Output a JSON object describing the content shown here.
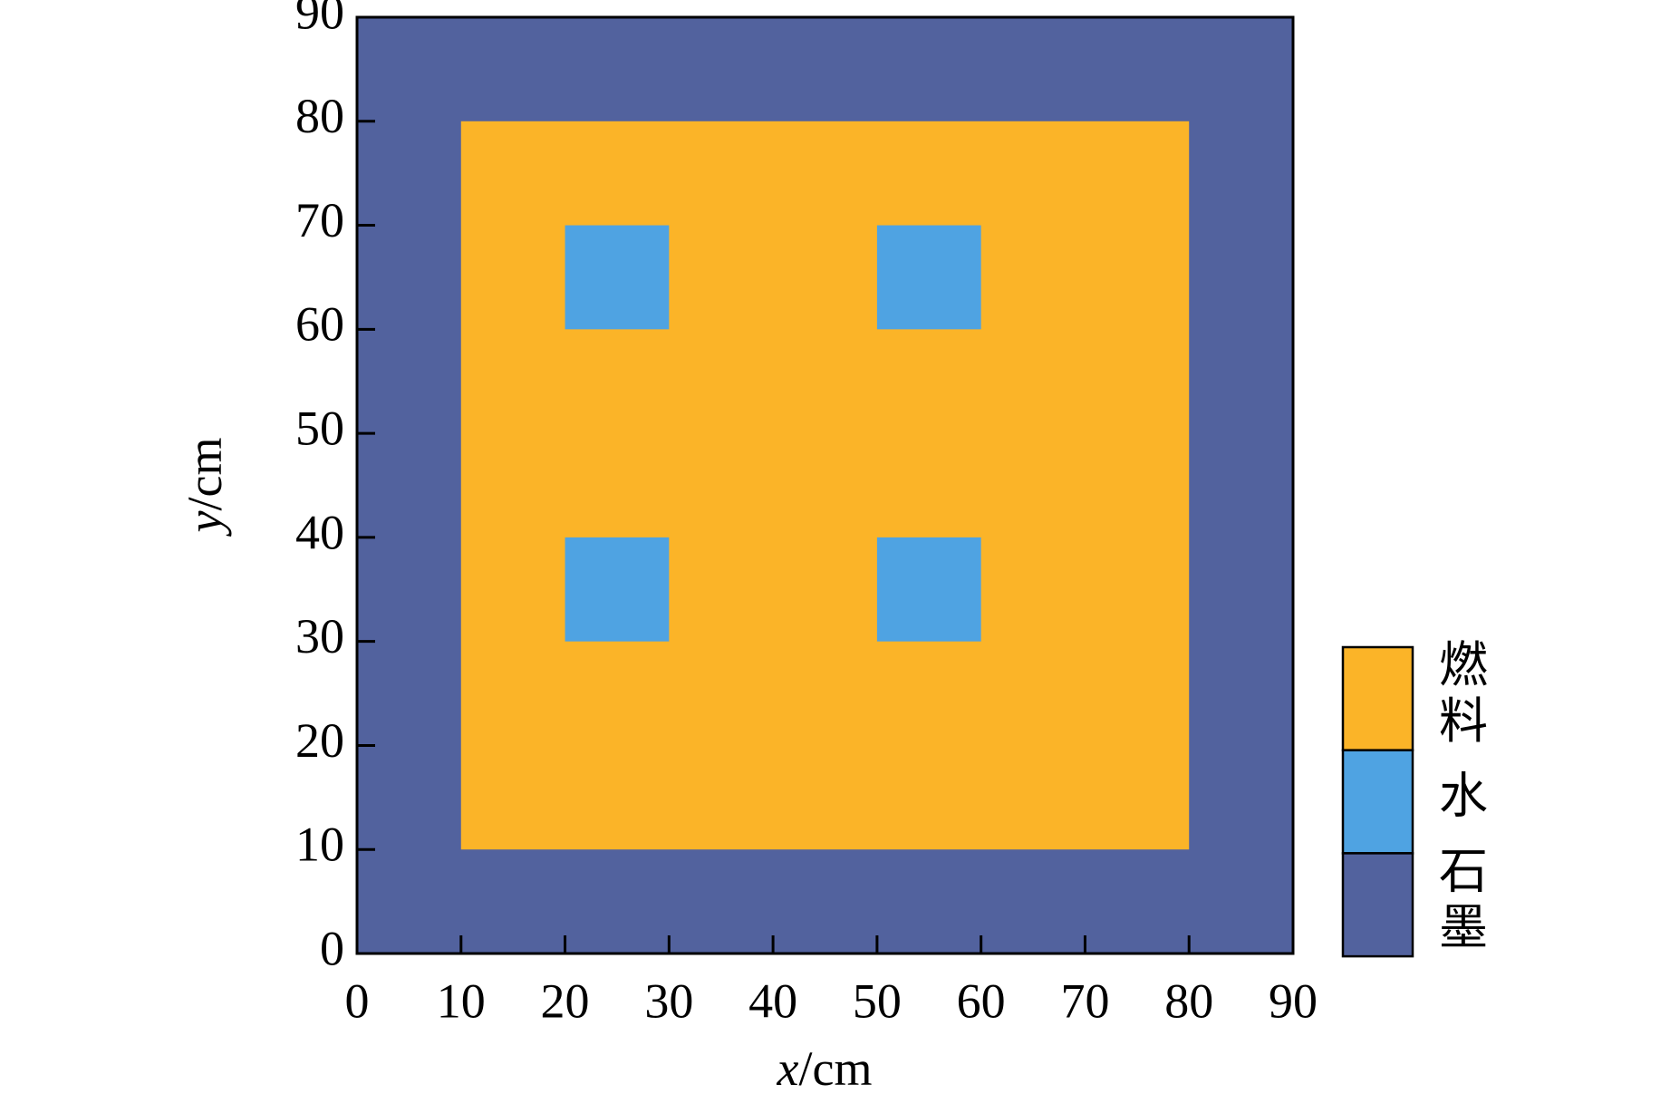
{
  "chart_data": {
    "type": "region",
    "xlabel": "x/cm",
    "ylabel": "y/cm",
    "xlim": [
      0,
      90
    ],
    "ylim": [
      0,
      90
    ],
    "xticks": [
      0,
      10,
      20,
      30,
      40,
      50,
      60,
      70,
      80,
      90
    ],
    "yticks": [
      0,
      10,
      20,
      30,
      40,
      50,
      60,
      70,
      80,
      90
    ],
    "series": [
      {
        "name": "燃料",
        "color": "#fbb428",
        "rects": [
          {
            "x": [
              10,
              80
            ],
            "y": [
              10,
              80
            ]
          }
        ]
      },
      {
        "name": "水",
        "color": "#4fa3e2",
        "rects": [
          {
            "x": [
              20,
              30
            ],
            "y": [
              60,
              70
            ]
          },
          {
            "x": [
              50,
              60
            ],
            "y": [
              60,
              70
            ]
          },
          {
            "x": [
              20,
              30
            ],
            "y": [
              30,
              40
            ]
          },
          {
            "x": [
              50,
              60
            ],
            "y": [
              30,
              40
            ]
          }
        ]
      },
      {
        "name": "石墨",
        "color": "#52629e",
        "rects": [
          {
            "x": [
              0,
              90
            ],
            "y": [
              0,
              90
            ]
          }
        ]
      }
    ]
  }
}
